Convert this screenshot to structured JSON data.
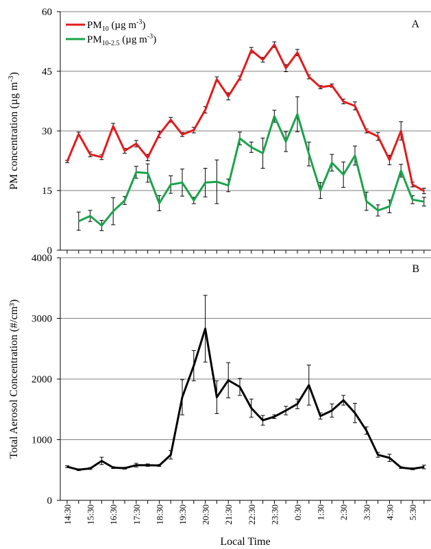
{
  "chart_data": [
    {
      "panel_label": "A",
      "type": "line",
      "ylabel_main": "PM concentration (µg m",
      "ylabel_sup": "-3",
      "ylabel_tail": ")",
      "ylim": [
        0,
        60
      ],
      "yticks": [
        "0",
        "15",
        "30",
        "45",
        "60"
      ],
      "ytick_values": [
        0,
        15,
        30,
        45,
        60
      ],
      "grid": true,
      "legend_position": "top-left",
      "series": [
        {
          "key": "pm10",
          "legend_main": "PM",
          "legend_sub": "10",
          "legend_tail": " (µg m",
          "legend_sup": "-3",
          "legend_end": ")",
          "color": "#e31a1c",
          "values": [
            22.3,
            29.2,
            24.1,
            23.4,
            31.2,
            25.0,
            26.8,
            23.3,
            29.1,
            32.8,
            29.1,
            30.2,
            35.3,
            43.0,
            38.7,
            43.3,
            50.3,
            47.9,
            51.7,
            45.8,
            49.7,
            43.6,
            41.0,
            41.4,
            37.4,
            36.3,
            30.0,
            28.6,
            22.7,
            30.0,
            16.5,
            14.9
          ],
          "errors": [
            0.3,
            0.5,
            0.6,
            0.6,
            0.7,
            0.6,
            0.8,
            0.8,
            0.8,
            0.6,
            0.5,
            0.7,
            0.8,
            0.6,
            0.9,
            0.5,
            0.7,
            0.6,
            0.7,
            0.9,
            0.8,
            0.5,
            0.4,
            0.4,
            0.6,
            1.0,
            0.5,
            1.0,
            1.2,
            2.3,
            0.6,
            0.7
          ]
        },
        {
          "key": "pm10_25",
          "legend_main": "PM",
          "legend_sub": "10-2.5",
          "legend_tail": " (µg m",
          "legend_sup": "-3",
          "legend_end": ")",
          "color": "#1aa34a",
          "values": [
            null,
            7.3,
            8.6,
            6.2,
            9.8,
            12.5,
            19.6,
            19.4,
            11.8,
            16.5,
            17.0,
            12.5,
            17.0,
            17.2,
            16.3,
            28.1,
            25.9,
            24.4,
            33.7,
            27.3,
            34.2,
            24.2,
            15.0,
            22.0,
            19.0,
            23.8,
            12.3,
            10.0,
            11.0,
            20.0,
            12.7,
            12.2
          ],
          "errors": [
            null,
            2.3,
            1.4,
            1.3,
            3.4,
            1.0,
            1.5,
            2.3,
            1.9,
            2.2,
            3.4,
            0.8,
            3.6,
            5.5,
            1.6,
            1.6,
            1.3,
            3.8,
            1.5,
            2.5,
            4.4,
            3.0,
            2.0,
            2.1,
            3.2,
            2.4,
            2.3,
            1.4,
            1.6,
            1.6,
            1.0,
            1.1
          ]
        }
      ]
    },
    {
      "panel_label": "B",
      "type": "line",
      "ylabel_main": "Total  Aerosol Concentration (#/cm³)",
      "ylim": [
        0,
        4000
      ],
      "yticks": [
        "0",
        "1000",
        "2000",
        "3000",
        "4000"
      ],
      "ytick_values": [
        0,
        1000,
        2000,
        3000,
        4000
      ],
      "grid": true,
      "xlabel": "Local Time",
      "xticklabels": [
        "14:30",
        "15:30",
        "16:30",
        "17:30",
        "18:30",
        "19:30",
        "20:30",
        "21:30",
        "22:30",
        "23:30",
        "0:30",
        "1:30",
        "2:30",
        "3:30",
        "4:30",
        "5:30"
      ],
      "series": [
        {
          "key": "total",
          "color": "#000000",
          "values": [
            555,
            505,
            525,
            650,
            540,
            530,
            580,
            580,
            575,
            750,
            1700,
            2220,
            2830,
            1700,
            1980,
            1870,
            1520,
            1320,
            1380,
            1480,
            1590,
            1900,
            1390,
            1480,
            1650,
            1440,
            1150,
            750,
            700,
            540,
            520,
            550
          ],
          "errors": [
            15,
            15,
            15,
            60,
            15,
            15,
            30,
            20,
            15,
            70,
            290,
            250,
            550,
            270,
            290,
            140,
            150,
            80,
            30,
            70,
            80,
            330,
            50,
            110,
            80,
            160,
            60,
            40,
            60,
            15,
            15,
            30
          ]
        }
      ]
    }
  ]
}
